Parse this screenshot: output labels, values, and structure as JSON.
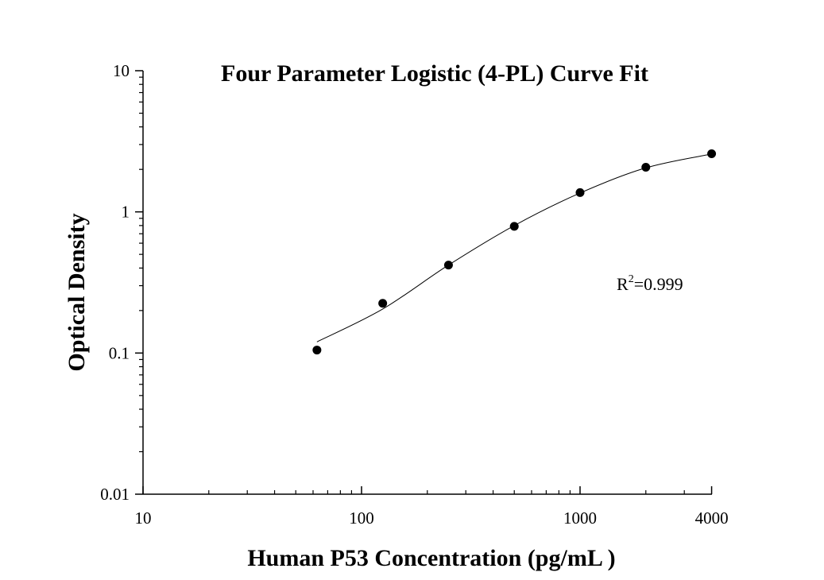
{
  "chart_data": {
    "type": "scatter",
    "title": "Four Parameter Logistic (4-PL) Curve Fit",
    "xlabel": "Human P53 Concentration (pg/mL )",
    "ylabel": "Optical Density",
    "x_scale": "log",
    "y_scale": "log",
    "xlim": [
      10,
      4000
    ],
    "ylim": [
      0.01,
      10
    ],
    "x_ticks": [
      {
        "value": 10,
        "label": "10"
      },
      {
        "value": 100,
        "label": "100"
      },
      {
        "value": 1000,
        "label": "1000"
      },
      {
        "value": 4000,
        "label": "4000"
      }
    ],
    "y_ticks": [
      {
        "value": 0.01,
        "label": "0.01"
      },
      {
        "value": 0.1,
        "label": "0.1"
      },
      {
        "value": 1,
        "label": "1"
      },
      {
        "value": 10,
        "label": "10"
      }
    ],
    "grid": false,
    "series": [
      {
        "x": [
          62.5,
          125,
          250,
          500,
          1000,
          2000,
          4000
        ],
        "y": [
          0.105,
          0.225,
          0.42,
          0.79,
          1.37,
          2.07,
          2.58
        ]
      }
    ],
    "fit": {
      "model": "4-PL",
      "x_range": [
        62.5,
        4000
      ],
      "y": [
        0.12,
        0.205,
        0.42,
        0.8,
        1.36,
        2.05,
        2.57
      ]
    },
    "annotation": {
      "base": "R",
      "sup": "2",
      "value": "=0.999"
    },
    "colors": {
      "marker": "#000000",
      "curve": "#000000",
      "axis": "#000000"
    }
  }
}
